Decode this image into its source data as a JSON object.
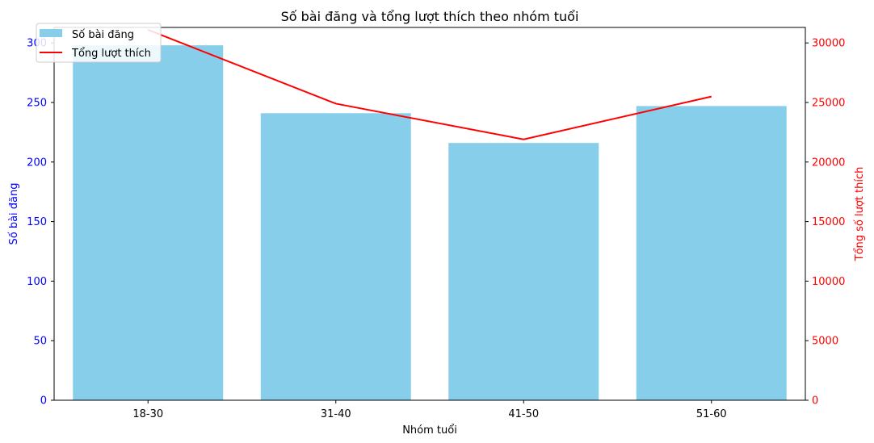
{
  "chart_data": {
    "type": "bar",
    "title": "Số bài đăng và tổng lượt thích theo nhóm tuổi",
    "xlabel": "Nhóm tuổi",
    "ylabel": "Số bài đăng",
    "ylabel_right": "Tổng số lượt thích",
    "categories": [
      "18-30",
      "31-40",
      "41-50",
      "51-60"
    ],
    "ylim": [
      0,
      313
    ],
    "ylim_right": [
      0,
      31300
    ],
    "y_ticks": [
      "0",
      "50",
      "100",
      "150",
      "200",
      "250",
      "300"
    ],
    "y_ticks_right": [
      "0",
      "5000",
      "10000",
      "15000",
      "20000",
      "25000",
      "30000"
    ],
    "grid": false,
    "legend_position": "upper-left",
    "series": [
      {
        "name": "Số bài đăng",
        "type": "bar",
        "axis": "left",
        "color": "#87CEEB",
        "values": [
          298,
          241,
          216,
          247
        ]
      },
      {
        "name": "Tổng lượt thích",
        "type": "line",
        "axis": "right",
        "color": "#FF0000",
        "values": [
          31100,
          24900,
          21900,
          25500
        ]
      }
    ],
    "left_axis_color": "#0000FF",
    "right_axis_color": "#FF0000"
  }
}
